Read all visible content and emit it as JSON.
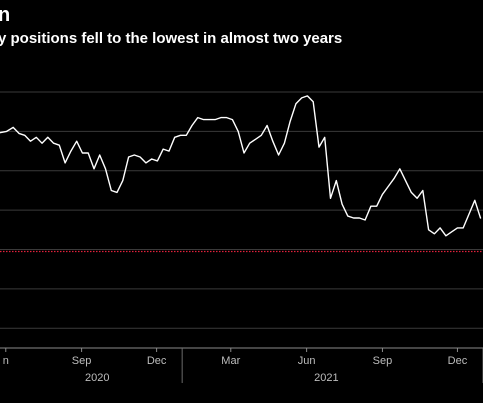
{
  "title": "n",
  "subtitle": "y positions fell to the lowest in almost two years",
  "chart_data": {
    "type": "line",
    "title": "n",
    "subtitle": "y positions fell to the lowest in almost two years",
    "x_ticks": [
      "n",
      "Sep",
      "Dec",
      "Mar",
      "Jun",
      "Sep",
      "Dec"
    ],
    "x_tick_dates": [
      "2020-06-01",
      "2020-09-01",
      "2020-12-01",
      "2021-03-01",
      "2021-06-01",
      "2021-09-01",
      "2021-12-01"
    ],
    "year_labels": [
      {
        "label": "2020",
        "date": "2020-09-20"
      },
      {
        "label": "2021",
        "date": "2021-06-25"
      }
    ],
    "year_separators": [
      "2021-01-01",
      "2022-01-01"
    ],
    "grid": true,
    "series": [
      {
        "color": "#ffffff",
        "points": [
          [
            "2020-05-20",
            1.9
          ],
          [
            "2020-06-02",
            2.0
          ],
          [
            "2020-06-10",
            2.2
          ],
          [
            "2020-06-17",
            1.9
          ],
          [
            "2020-06-24",
            1.8
          ],
          [
            "2020-07-01",
            1.5
          ],
          [
            "2020-07-08",
            1.7
          ],
          [
            "2020-07-15",
            1.4
          ],
          [
            "2020-07-22",
            1.7
          ],
          [
            "2020-07-29",
            1.4
          ],
          [
            "2020-08-05",
            1.3
          ],
          [
            "2020-08-12",
            0.4
          ],
          [
            "2020-08-19",
            1.0
          ],
          [
            "2020-08-26",
            1.5
          ],
          [
            "2020-09-02",
            0.9
          ],
          [
            "2020-09-09",
            0.9
          ],
          [
            "2020-09-16",
            0.1
          ],
          [
            "2020-09-23",
            0.8
          ],
          [
            "2020-09-30",
            0.1
          ],
          [
            "2020-10-07",
            -1.0
          ],
          [
            "2020-10-14",
            -1.1
          ],
          [
            "2020-10-21",
            -0.5
          ],
          [
            "2020-10-28",
            0.7
          ],
          [
            "2020-11-04",
            0.8
          ],
          [
            "2020-11-11",
            0.7
          ],
          [
            "2020-11-18",
            0.4
          ],
          [
            "2020-11-25",
            0.6
          ],
          [
            "2020-12-02",
            0.5
          ],
          [
            "2020-12-09",
            1.1
          ],
          [
            "2020-12-16",
            1.0
          ],
          [
            "2020-12-23",
            1.7
          ],
          [
            "2020-12-30",
            1.8
          ],
          [
            "2021-01-06",
            1.8
          ],
          [
            "2021-01-13",
            2.3
          ],
          [
            "2021-01-20",
            2.7
          ],
          [
            "2021-01-27",
            2.6
          ],
          [
            "2021-02-03",
            2.6
          ],
          [
            "2021-02-10",
            2.6
          ],
          [
            "2021-02-17",
            2.7
          ],
          [
            "2021-02-24",
            2.7
          ],
          [
            "2021-03-03",
            2.6
          ],
          [
            "2021-03-10",
            2.0
          ],
          [
            "2021-03-17",
            0.9
          ],
          [
            "2021-03-24",
            1.4
          ],
          [
            "2021-03-31",
            1.6
          ],
          [
            "2021-04-07",
            1.8
          ],
          [
            "2021-04-14",
            2.3
          ],
          [
            "2021-04-21",
            1.5
          ],
          [
            "2021-04-28",
            0.8
          ],
          [
            "2021-05-05",
            1.4
          ],
          [
            "2021-05-12",
            2.5
          ],
          [
            "2021-05-19",
            3.4
          ],
          [
            "2021-05-26",
            3.7
          ],
          [
            "2021-06-02",
            3.8
          ],
          [
            "2021-06-09",
            3.5
          ],
          [
            "2021-06-16",
            1.2
          ],
          [
            "2021-06-23",
            1.7
          ],
          [
            "2021-06-30",
            -1.4
          ],
          [
            "2021-07-07",
            -0.5
          ],
          [
            "2021-07-14",
            -1.7
          ],
          [
            "2021-07-21",
            -2.3
          ],
          [
            "2021-07-28",
            -2.4
          ],
          [
            "2021-08-04",
            -2.4
          ],
          [
            "2021-08-11",
            -2.5
          ],
          [
            "2021-08-18",
            -1.8
          ],
          [
            "2021-08-25",
            -1.8
          ],
          [
            "2021-09-01",
            -1.2
          ],
          [
            "2021-09-08",
            -0.8
          ],
          [
            "2021-09-15",
            -0.4
          ],
          [
            "2021-09-22",
            0.1
          ],
          [
            "2021-09-29",
            -0.5
          ],
          [
            "2021-10-06",
            -1.1
          ],
          [
            "2021-10-13",
            -1.4
          ],
          [
            "2021-10-20",
            -1.0
          ],
          [
            "2021-10-27",
            -3.0
          ],
          [
            "2021-11-03",
            -3.2
          ],
          [
            "2021-11-10",
            -2.9
          ],
          [
            "2021-11-17",
            -3.3
          ],
          [
            "2021-11-24",
            -3.1
          ],
          [
            "2021-12-01",
            -2.9
          ],
          [
            "2021-12-08",
            -2.9
          ],
          [
            "2021-12-15",
            -2.2
          ],
          [
            "2021-12-22",
            -1.5
          ],
          [
            "2021-12-29",
            -2.4
          ]
        ]
      }
    ],
    "reference_line": {
      "value": -4.1,
      "color": "#e0213b",
      "style": "dotted"
    },
    "x_range": [
      "2020-05-25",
      "2022-01-01"
    ],
    "y_range": [
      -9,
      4
    ],
    "y_gridlines": [
      4,
      2,
      0,
      -2,
      -4,
      -6,
      -8
    ]
  }
}
